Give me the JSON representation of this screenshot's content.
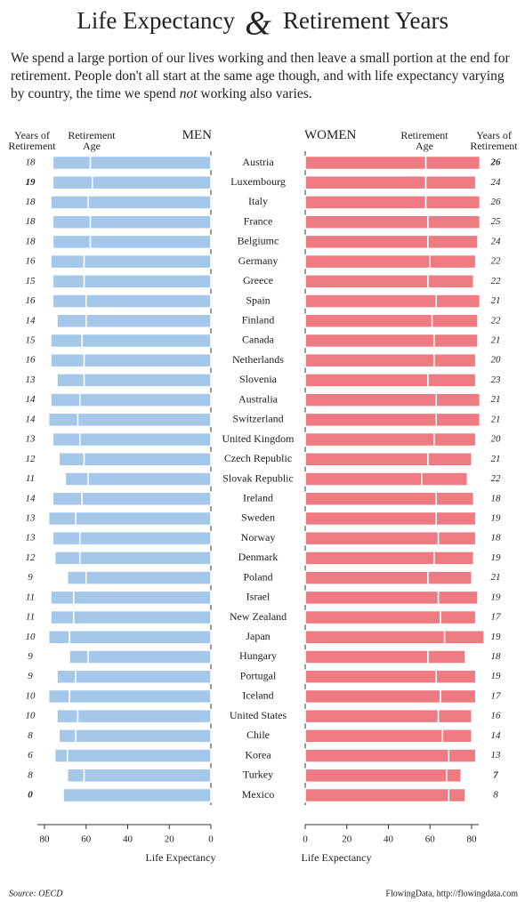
{
  "chart_data": {
    "type": "butterfly",
    "title": "Life Expectancy",
    "title_amp": "&",
    "title_end": "Retirement Years",
    "subtitle": [
      "We spend a large portion of our lives working and then leave a small portion at the end for retirement. People don't all start at the same age though, and with life expectancy varying by country, the time we spend ",
      "not",
      " working also varies."
    ],
    "source": "Source: OECD",
    "credit": "FlowingData, http://flowingdata.com",
    "categories": [
      "Austria",
      "Luxembourg",
      "Italy",
      "France",
      "Belgiumc",
      "Germany",
      "Greece",
      "Spain",
      "Finland",
      "Canada",
      "Netherlands",
      "Slovenia",
      "Australia",
      "Switzerland",
      "United Kingdom",
      "Czech Republic",
      "Slovak Republic",
      "Ireland",
      "Sweden",
      "Norway",
      "Denmark",
      "Poland",
      "Israel",
      "New Zealand",
      "Japan",
      "Hungary",
      "Portugal",
      "Iceland",
      "United States",
      "Chile",
      "Korea",
      "Turkey",
      "Mexico"
    ],
    "panels": [
      {
        "name": "MEN",
        "side": "left",
        "color": "#a5c8ea",
        "xlabel": "Life Expectancy",
        "xlim": [
          0,
          80
        ],
        "xticks": [
          0,
          20,
          40,
          60,
          80
        ],
        "series": [
          {
            "name": "Retirement Age",
            "values": [
              58,
              57,
              59,
              58,
              58,
              61,
              61,
              60,
              60,
              62,
              61,
              61,
              63,
              64,
              63,
              61,
              59,
              62,
              65,
              63,
              63,
              60,
              66,
              66,
              68,
              59,
              65,
              68,
              64,
              65,
              69,
              61,
              71
            ]
          },
          {
            "name": "Years of Retirement",
            "values": [
              18,
              19,
              18,
              18,
              18,
              16,
              15,
              16,
              14,
              15,
              16,
              13,
              14,
              14,
              13,
              12,
              11,
              14,
              13,
              13,
              12,
              9,
              11,
              11,
              10,
              9,
              9,
              10,
              10,
              8,
              6,
              8,
              0
            ]
          }
        ]
      },
      {
        "name": "WOMEN",
        "side": "right",
        "color": "#ee7b82",
        "xlabel": "Life Expectancy",
        "xlim": [
          0,
          80
        ],
        "xticks": [
          0,
          20,
          40,
          60,
          80
        ],
        "series": [
          {
            "name": "Retirement Age",
            "values": [
              58,
              58,
              58,
              59,
              59,
              60,
              59,
              63,
              61,
              62,
              62,
              59,
              63,
              63,
              62,
              59,
              56,
              63,
              63,
              64,
              62,
              59,
              64,
              65,
              67,
              59,
              63,
              65,
              64,
              66,
              69,
              68,
              69
            ]
          },
          {
            "name": "Years of Retirement",
            "values": [
              26,
              24,
              26,
              25,
              24,
              22,
              22,
              21,
              22,
              21,
              20,
              23,
              21,
              21,
              20,
              21,
              22,
              18,
              19,
              18,
              19,
              21,
              19,
              17,
              19,
              18,
              19,
              17,
              16,
              14,
              13,
              7,
              8
            ]
          }
        ]
      }
    ]
  }
}
